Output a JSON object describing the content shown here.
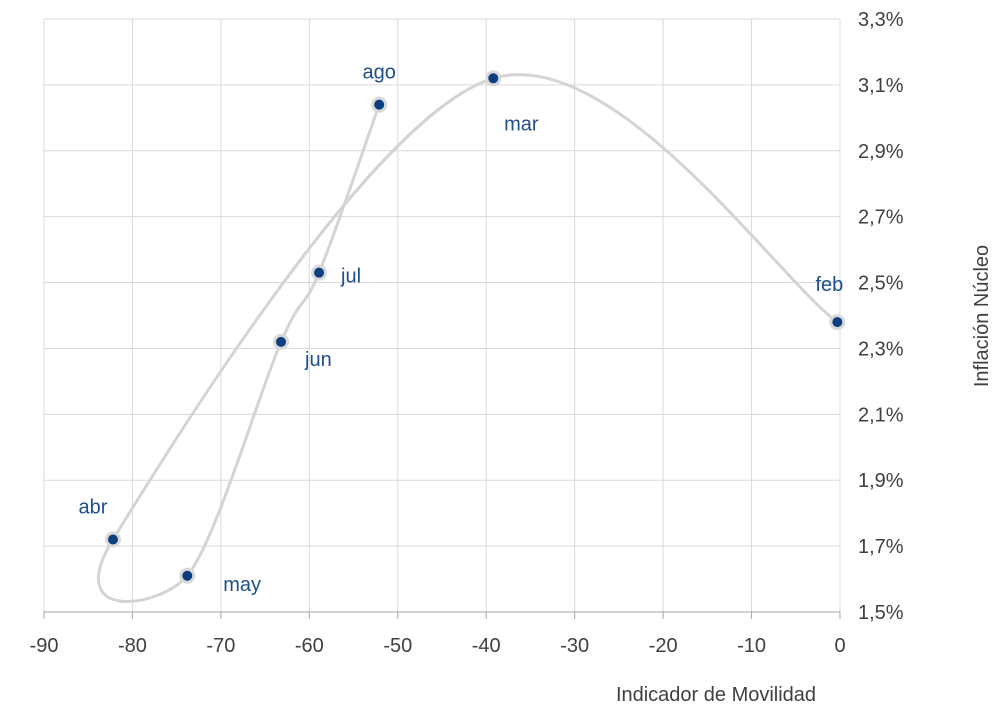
{
  "chart_data": {
    "type": "scatter",
    "title": "",
    "xlabel": "Indicador  de Movilidad",
    "ylabel": "Inflación Núcleo",
    "xlim": [
      -90,
      0
    ],
    "ylim": [
      1.5,
      3.3
    ],
    "x_ticks": [
      -90,
      -80,
      -70,
      -60,
      -50,
      -40,
      -30,
      -20,
      -10,
      0
    ],
    "x_tick_labels": [
      "-90",
      "-80",
      "-70",
      "-60",
      "-50",
      "-40",
      "-30",
      "-20",
      "-10",
      "0"
    ],
    "y_ticks": [
      1.5,
      1.7,
      1.9,
      2.1,
      2.3,
      2.5,
      2.7,
      2.9,
      3.1,
      3.3
    ],
    "y_tick_labels": [
      "1,5%",
      "1,7%",
      "1,9%",
      "2,1%",
      "2,3%",
      "2,5%",
      "2,7%",
      "2,9%",
      "3,1%",
      "3,3%"
    ],
    "y_axis_side": "right",
    "grid": true,
    "connected": true,
    "line_style": "smooth",
    "line_color": "#d4d4d4",
    "marker_color": "#0d3f80",
    "label_color": "#1f4e8c",
    "points": [
      {
        "label": "feb",
        "x": -0.3,
        "y": 2.38
      },
      {
        "label": "mar",
        "x": -39.2,
        "y": 3.12
      },
      {
        "label": "abr",
        "x": -82.2,
        "y": 1.72
      },
      {
        "label": "may",
        "x": -73.8,
        "y": 1.61
      },
      {
        "label": "jun",
        "x": -63.2,
        "y": 2.32
      },
      {
        "label": "jul",
        "x": -58.9,
        "y": 2.53
      },
      {
        "label": "ago",
        "x": -52.1,
        "y": 3.04
      }
    ]
  }
}
